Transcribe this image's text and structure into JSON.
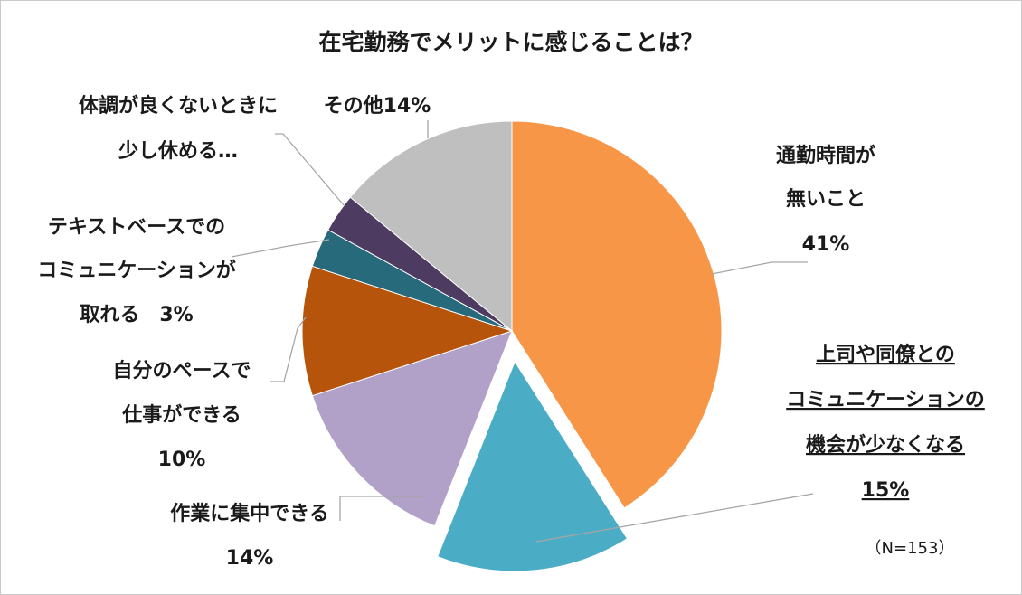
{
  "chart_data": {
    "type": "pie",
    "title": "在宅勤務でメリットに感じることは？",
    "note": "（N=153）",
    "slices": [
      {
        "key": "commute",
        "label_lines": [
          "通勤時間が",
          "無いこと"
        ],
        "pct_text": "41%",
        "value": 41,
        "color": "#F79646"
      },
      {
        "key": "communication_less",
        "label_lines": [
          "上司や同僚との",
          "コミュニケーションの",
          "機会が少なくなる"
        ],
        "pct_text": "15%",
        "value": 15,
        "color": "#4BACC6",
        "exploded": true,
        "underline": true
      },
      {
        "key": "focus",
        "label_lines": [
          "作業に集中できる"
        ],
        "pct_text": "14%",
        "value": 14,
        "color": "#B1A0C7"
      },
      {
        "key": "own_pace",
        "label_lines": [
          "自分のペースで",
          "仕事ができる"
        ],
        "pct_text": "10%",
        "value": 10,
        "color": "#B7540C"
      },
      {
        "key": "text_based",
        "label_lines": [
          "テキストベースでの",
          "コミュニケーションが",
          "取れる　3%"
        ],
        "pct_text": "",
        "value": 3,
        "color": "#276A7C"
      },
      {
        "key": "rest_when_sick",
        "label_lines": [
          "体調が良くないときに",
          "少し休める…"
        ],
        "pct_text": "",
        "value": 3,
        "color": "#4E3B62"
      },
      {
        "key": "other",
        "label_lines": [
          "その他14%"
        ],
        "pct_text": "",
        "value": 14,
        "color": "#BFBFBF"
      }
    ]
  }
}
